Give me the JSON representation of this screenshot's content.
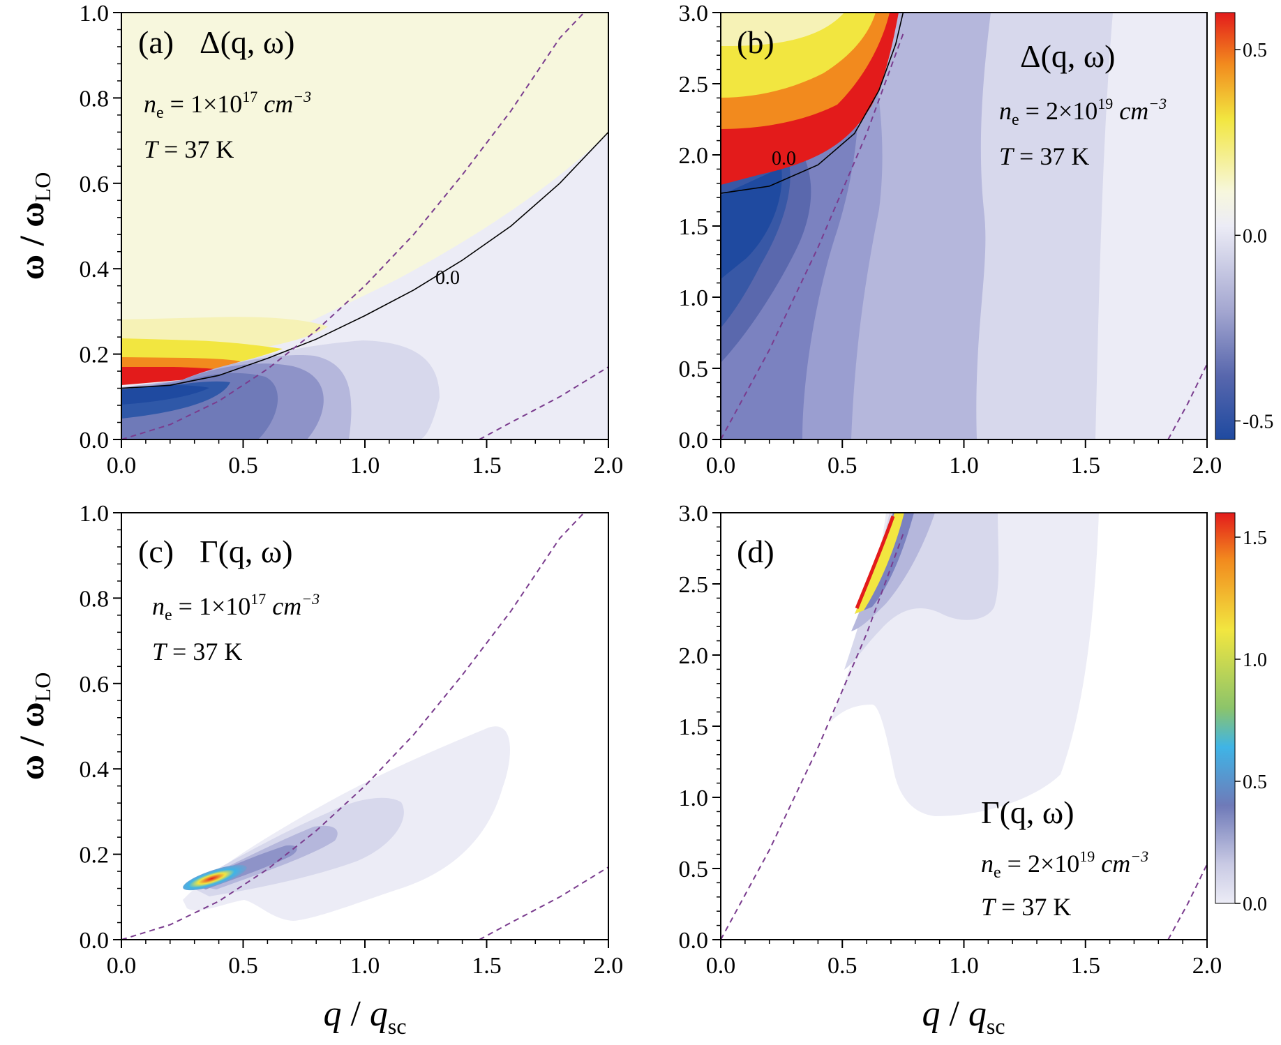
{
  "chart_data": [
    {
      "panel": "a",
      "type": "heatmap",
      "panel_label": "(a)",
      "function": "Δ(q, ω)",
      "density_text": {
        "base": "n",
        "sub": "e",
        "eq": " = 1×10",
        "exp": "17",
        "unit": " cm",
        "unit_exp": "−3"
      },
      "temperature_text": {
        "var": "T",
        "rest": " = 37 K"
      },
      "xlim": [
        0,
        2
      ],
      "ylim": [
        0,
        1
      ],
      "xticks": [
        "0.0",
        "0.5",
        "1.0",
        "1.5",
        "2.0"
      ],
      "yticks": [
        "0.0",
        "0.2",
        "0.4",
        "0.6",
        "0.8",
        "1.0"
      ],
      "zero_contour_label": "0.0",
      "zero_contour": [
        [
          0,
          0.12
        ],
        [
          0.2,
          0.127
        ],
        [
          0.4,
          0.15
        ],
        [
          0.6,
          0.19
        ],
        [
          0.8,
          0.235
        ],
        [
          1.0,
          0.29
        ],
        [
          1.2,
          0.35
        ],
        [
          1.4,
          0.42
        ],
        [
          1.6,
          0.5
        ],
        [
          1.8,
          0.6
        ],
        [
          2.0,
          0.72
        ]
      ],
      "dashed_boundaries": [
        [
          [
            0,
            0
          ],
          [
            0.2,
            0.035
          ],
          [
            0.4,
            0.09
          ],
          [
            0.6,
            0.165
          ],
          [
            0.8,
            0.255
          ],
          [
            1.0,
            0.36
          ],
          [
            1.2,
            0.48
          ],
          [
            1.4,
            0.62
          ],
          [
            1.6,
            0.77
          ],
          [
            1.8,
            0.94
          ],
          [
            1.9,
            1.0
          ]
        ],
        [
          [
            1.47,
            0
          ],
          [
            1.6,
            0.04
          ],
          [
            1.8,
            0.1
          ],
          [
            2.0,
            0.17
          ]
        ]
      ]
    },
    {
      "panel": "b",
      "type": "heatmap",
      "panel_label": "(b)",
      "function": "Δ(q, ω)",
      "density_text": {
        "base": "n",
        "sub": "e",
        "eq": " = 2×10",
        "exp": "19",
        "unit": " cm",
        "unit_exp": "−3"
      },
      "temperature_text": {
        "var": "T",
        "rest": " = 37 K"
      },
      "xlim": [
        0,
        2
      ],
      "ylim": [
        0,
        3
      ],
      "xticks": [
        "0.0",
        "0.5",
        "1.0",
        "1.5",
        "2.0"
      ],
      "yticks": [
        "0.0",
        "0.5",
        "1.0",
        "1.5",
        "2.0",
        "2.5",
        "3.0"
      ],
      "zero_contour_label": "0.0",
      "zero_contour": [
        [
          0,
          1.73
        ],
        [
          0.2,
          1.78
        ],
        [
          0.4,
          1.93
        ],
        [
          0.55,
          2.15
        ],
        [
          0.65,
          2.45
        ],
        [
          0.72,
          2.78
        ],
        [
          0.75,
          3.0
        ]
      ],
      "dashed_boundaries": [
        [
          [
            0,
            0
          ],
          [
            0.2,
            0.63
          ],
          [
            0.4,
            1.35
          ],
          [
            0.6,
            2.15
          ],
          [
            0.75,
            2.85
          ]
        ],
        [
          [
            1.84,
            0
          ],
          [
            1.92,
            0.25
          ],
          [
            2.0,
            0.53
          ]
        ]
      ],
      "colorbar": {
        "ticks": [
          "0.5",
          "0.0",
          "-0.5"
        ],
        "range": [
          -0.55,
          0.6
        ]
      }
    },
    {
      "panel": "c",
      "type": "heatmap",
      "panel_label": "(c)",
      "function": "Γ(q, ω)",
      "density_text": {
        "base": "n",
        "sub": "e",
        "eq": " = 1×10",
        "exp": "17",
        "unit": " cm",
        "unit_exp": "−3"
      },
      "temperature_text": {
        "var": "T",
        "rest": " = 37 K"
      },
      "xlim": [
        0,
        2
      ],
      "ylim": [
        0,
        1
      ],
      "xticks": [
        "0.0",
        "0.5",
        "1.0",
        "1.5",
        "2.0"
      ],
      "yticks": [
        "0.0",
        "0.2",
        "0.4",
        "0.6",
        "0.8",
        "1.0"
      ],
      "dashed_boundaries": [
        [
          [
            0,
            0
          ],
          [
            0.2,
            0.035
          ],
          [
            0.4,
            0.09
          ],
          [
            0.6,
            0.165
          ],
          [
            0.8,
            0.255
          ],
          [
            1.0,
            0.36
          ],
          [
            1.2,
            0.48
          ],
          [
            1.4,
            0.62
          ],
          [
            1.6,
            0.77
          ],
          [
            1.8,
            0.94
          ],
          [
            1.9,
            1.0
          ]
        ],
        [
          [
            1.47,
            0
          ],
          [
            1.6,
            0.04
          ],
          [
            1.8,
            0.1
          ],
          [
            2.0,
            0.17
          ]
        ]
      ]
    },
    {
      "panel": "d",
      "type": "heatmap",
      "panel_label": "(d)",
      "function": "Γ(q, ω)",
      "density_text": {
        "base": "n",
        "sub": "e",
        "eq": " = 2×10",
        "exp": "19",
        "unit": " cm",
        "unit_exp": "−3"
      },
      "temperature_text": {
        "var": "T",
        "rest": " = 37 K"
      },
      "xlim": [
        0,
        2
      ],
      "ylim": [
        0,
        3
      ],
      "xticks": [
        "0.0",
        "0.5",
        "1.0",
        "1.5",
        "2.0"
      ],
      "yticks": [
        "0.0",
        "0.5",
        "1.0",
        "1.5",
        "2.0",
        "2.5",
        "3.0"
      ],
      "dashed_boundaries": [
        [
          [
            0,
            0
          ],
          [
            0.2,
            0.63
          ],
          [
            0.4,
            1.35
          ],
          [
            0.6,
            2.15
          ],
          [
            0.75,
            2.85
          ]
        ],
        [
          [
            1.84,
            0
          ],
          [
            1.92,
            0.25
          ],
          [
            2.0,
            0.53
          ]
        ]
      ],
      "colorbar": {
        "ticks": [
          "1.5",
          "1.0",
          "0.5",
          "0.0"
        ],
        "range": [
          0,
          1.6
        ]
      }
    }
  ],
  "axis_labels": {
    "y": {
      "num": "ω",
      "den": "ω",
      "den_sub": "LO"
    },
    "x": {
      "num": "q",
      "den": "q",
      "den_sub": "sc"
    }
  },
  "colors": {
    "dashed": "#7a3c8e",
    "neg_deep": "#1f4aa0",
    "neg_mid": "#6f7ab8",
    "neg_light": "#c9cae4",
    "neg_pale": "#ececf6",
    "pos_pale": "#f7f7dd",
    "pos_yellow": "#f2e640",
    "pos_orange": "#f28a1e",
    "pos_red": "#e31b1b"
  }
}
